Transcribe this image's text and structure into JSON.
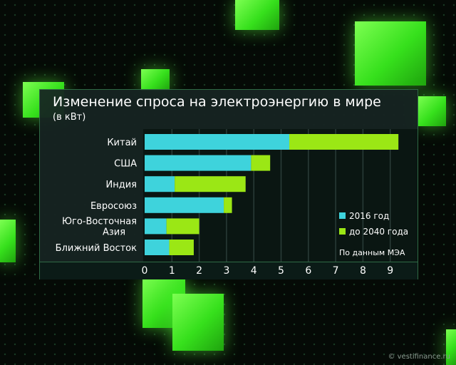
{
  "chart_data": {
    "type": "bar",
    "stacked": true,
    "title": "Изменение спроса на электроэнергию в мире",
    "subtitle": "(в кВт)",
    "categories": [
      "Китай",
      "США",
      "Индия",
      "Евросоюз",
      "Юго-Восточная Азия",
      "Ближний Восток"
    ],
    "category_lines": [
      [
        "Китай"
      ],
      [
        "США"
      ],
      [
        "Индия"
      ],
      [
        "Евросоюз"
      ],
      [
        "Юго-Восточная",
        "Азия"
      ],
      [
        "Ближний Восток"
      ]
    ],
    "series": [
      {
        "name": "2016 год",
        "values": [
          5.3,
          3.9,
          1.1,
          2.9,
          0.8,
          0.9
        ],
        "color": "#3ed3dc"
      },
      {
        "name": "до 2040 года",
        "values": [
          4.0,
          0.7,
          2.6,
          0.3,
          1.2,
          0.9
        ],
        "color": "#9be715"
      }
    ],
    "x_ticks": [
      "0",
      "1",
      "2",
      "3",
      "4",
      "5",
      "6",
      "7",
      "8",
      "9"
    ],
    "xlim": [
      0,
      9.6
    ],
    "grid": true,
    "legend_position": "right",
    "source": "По данным МЭА"
  },
  "watermark": "© vestifinance.ru"
}
